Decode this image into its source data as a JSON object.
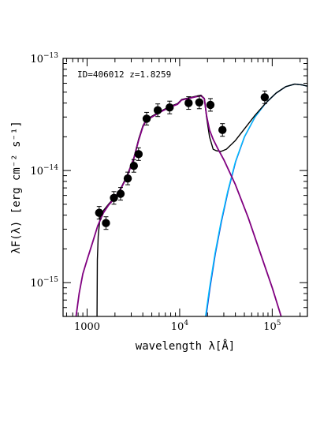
{
  "chart_data": {
    "type": "scatter",
    "annotation": "ID=406012 z=1.8259",
    "xlabel": "wavelength λ[Å]",
    "ylabel": "λF(λ) [erg cm⁻² s⁻¹]",
    "x_scale": "log",
    "y_scale": "log",
    "xlim": [
      550,
      240000
    ],
    "ylim": [
      5e-16,
      1e-13
    ],
    "x_ticks": [
      {
        "value": 1000,
        "label": "1000"
      },
      {
        "value": 10000,
        "label": "10",
        "sup": "4"
      },
      {
        "value": 100000,
        "label": "10",
        "sup": "5"
      }
    ],
    "y_ticks": [
      {
        "value": 1e-13,
        "label": "10",
        "sup": "−13"
      },
      {
        "value": 1e-14,
        "label": "10",
        "sup": "−14"
      },
      {
        "value": 1e-15,
        "label": "10",
        "sup": "−15"
      }
    ],
    "grid": false,
    "points": [
      {
        "x": 1350,
        "y": 4.2e-15
      },
      {
        "x": 1600,
        "y": 3.4e-15
      },
      {
        "x": 1950,
        "y": 5.7e-15
      },
      {
        "x": 2300,
        "y": 6.2e-15
      },
      {
        "x": 2750,
        "y": 8.5e-15
      },
      {
        "x": 3200,
        "y": 1.1e-14
      },
      {
        "x": 3600,
        "y": 1.4e-14
      },
      {
        "x": 4400,
        "y": 2.9e-14
      },
      {
        "x": 5800,
        "y": 3.45e-14
      },
      {
        "x": 7800,
        "y": 3.65e-14
      },
      {
        "x": 12500,
        "y": 4e-14
      },
      {
        "x": 16300,
        "y": 4.05e-14
      },
      {
        "x": 21500,
        "y": 3.85e-14
      },
      {
        "x": 29000,
        "y": 2.3e-14
      },
      {
        "x": 83000,
        "y": 4.5e-14
      }
    ],
    "series": [
      {
        "color": "#000000",
        "points": [
          [
            1280,
            5e-16
          ],
          [
            1290,
            1.6e-15
          ],
          [
            1320,
            2.6e-15
          ],
          [
            1380,
            3.8e-15
          ],
          [
            1500,
            4.4e-15
          ],
          [
            1700,
            5e-15
          ],
          [
            2000,
            5.8e-15
          ],
          [
            2300,
            6.9e-15
          ],
          [
            2700,
            9e-15
          ],
          [
            3200,
            1.3e-14
          ],
          [
            3600,
            1.9e-14
          ],
          [
            4000,
            2.5e-14
          ],
          [
            4300,
            2.8e-14
          ],
          [
            5000,
            3.05e-14
          ],
          [
            6500,
            3.45e-14
          ],
          [
            8000,
            3.75e-14
          ],
          [
            9500,
            3.95e-14
          ],
          [
            10500,
            4.3e-14
          ],
          [
            12500,
            4.45e-14
          ],
          [
            15000,
            4.6e-14
          ],
          [
            17000,
            4.7e-14
          ],
          [
            18500,
            4.4e-14
          ],
          [
            19500,
            3e-14
          ],
          [
            21000,
            2e-14
          ],
          [
            23000,
            1.55e-14
          ],
          [
            25000,
            1.5e-14
          ],
          [
            28000,
            1.48e-14
          ],
          [
            32000,
            1.55e-14
          ],
          [
            40000,
            1.85e-14
          ],
          [
            50000,
            2.35e-14
          ],
          [
            65000,
            3.1e-14
          ],
          [
            85000,
            4e-14
          ],
          [
            110000,
            4.9e-14
          ],
          [
            140000,
            5.6e-14
          ],
          [
            175000,
            5.9e-14
          ],
          [
            210000,
            5.8e-14
          ],
          [
            240000,
            5.65e-14
          ]
        ]
      },
      {
        "color": "#800080",
        "points": [
          [
            760,
            5e-16
          ],
          [
            820,
            8e-16
          ],
          [
            900,
            1.2e-15
          ],
          [
            1000,
            1.6e-15
          ],
          [
            1150,
            2.3e-15
          ],
          [
            1300,
            3.2e-15
          ],
          [
            1500,
            4.2e-15
          ],
          [
            1700,
            4.9e-15
          ],
          [
            2000,
            5.7e-15
          ],
          [
            2300,
            6.8e-15
          ],
          [
            2700,
            8.8e-15
          ],
          [
            3200,
            1.28e-14
          ],
          [
            3600,
            1.85e-14
          ],
          [
            4000,
            2.45e-14
          ],
          [
            4300,
            2.75e-14
          ],
          [
            5000,
            3e-14
          ],
          [
            6500,
            3.4e-14
          ],
          [
            8000,
            3.7e-14
          ],
          [
            9500,
            3.9e-14
          ],
          [
            10500,
            4.25e-14
          ],
          [
            12500,
            4.4e-14
          ],
          [
            15000,
            4.55e-14
          ],
          [
            17000,
            4.65e-14
          ],
          [
            18500,
            4.35e-14
          ],
          [
            19500,
            3.1e-14
          ],
          [
            21000,
            2.3e-14
          ],
          [
            23000,
            1.9e-14
          ],
          [
            26000,
            1.55e-14
          ],
          [
            30000,
            1.25e-14
          ],
          [
            40000,
            7.5e-15
          ],
          [
            55000,
            3.8e-15
          ],
          [
            75000,
            1.8e-15
          ],
          [
            100000,
            9e-16
          ],
          [
            125000,
            5e-16
          ]
        ]
      },
      {
        "color": "#00bfff",
        "points": [
          [
            19000,
            5e-16
          ],
          [
            21000,
            9e-16
          ],
          [
            24000,
            1.8e-15
          ],
          [
            28000,
            3.5e-15
          ],
          [
            33000,
            6.5e-15
          ],
          [
            40000,
            1.2e-14
          ],
          [
            50000,
            2e-14
          ],
          [
            65000,
            3e-14
          ],
          [
            85000,
            4e-14
          ],
          [
            110000,
            4.9e-14
          ],
          [
            140000,
            5.6e-14
          ],
          [
            175000,
            5.9e-14
          ],
          [
            210000,
            5.8e-14
          ],
          [
            240000,
            5.65e-14
          ]
        ]
      },
      {
        "color": "#1a3fd1",
        "points": [
          [
            19300,
            5e-16
          ],
          [
            21300,
            9e-16
          ],
          [
            24300,
            1.8e-15
          ],
          [
            28300,
            3.5e-15
          ],
          [
            33300,
            6.5e-15
          ],
          [
            40300,
            1.2e-14
          ],
          [
            50300,
            2e-14
          ],
          [
            65300,
            3e-14
          ],
          [
            85300,
            4e-14
          ],
          [
            110300,
            4.9e-14
          ],
          [
            140300,
            5.6e-14
          ],
          [
            175300,
            5.9e-14
          ],
          [
            210300,
            5.8e-14
          ],
          [
            240000,
            5.65e-14
          ]
        ]
      }
    ]
  }
}
